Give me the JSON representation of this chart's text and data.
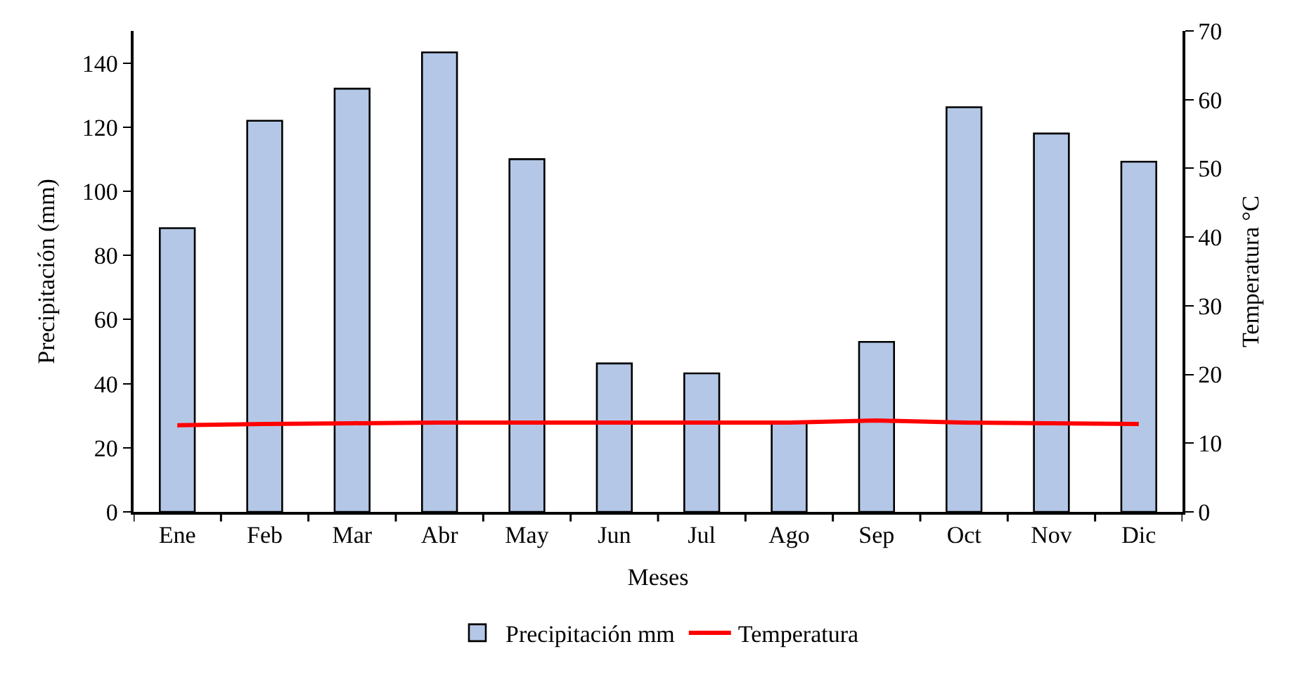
{
  "chart_data": {
    "type": "bar",
    "xlabel": "Meses",
    "ylabel": "Precipitación (mm)",
    "y2label": "Temperatura °C",
    "categories": [
      "Ene",
      "Feb",
      "Mar",
      "Abr",
      "May",
      "Jun",
      "Jul",
      "Ago",
      "Sep",
      "Oct",
      "Nov",
      "Dic"
    ],
    "series": [
      {
        "name": "Precipitación mm",
        "color": "#b4c7e7",
        "values": [
          88.5,
          122,
          132,
          143.3,
          110,
          46.3,
          43.2,
          27.7,
          53,
          126.2,
          118,
          109.2
        ]
      },
      {
        "name": "Temperatura",
        "type": "line",
        "axis": "y2",
        "color": "#ff0000",
        "values": [
          12.6,
          12.8,
          12.9,
          13,
          13,
          13,
          13,
          13,
          13.3,
          13,
          12.9,
          12.8
        ]
      }
    ],
    "ylim": [
      0,
      150
    ],
    "yticks": [
      0,
      20,
      40,
      60,
      80,
      100,
      120,
      140
    ],
    "y2lim": [
      0,
      70
    ],
    "y2ticks": [
      0,
      10,
      20,
      30,
      40,
      50,
      60,
      70
    ],
    "legend": "bottom",
    "marker": "none",
    "line_style": "solid"
  }
}
